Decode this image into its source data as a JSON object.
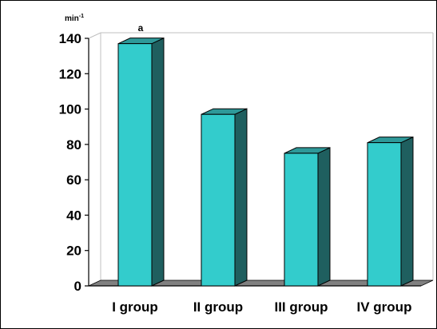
{
  "chart_data": {
    "type": "bar",
    "categories": [
      "I group",
      "II group",
      "III group",
      "IV group"
    ],
    "values": [
      137,
      97,
      75,
      81
    ],
    "ylim": [
      0,
      140
    ],
    "yticks": [
      0,
      20,
      40,
      60,
      80,
      100,
      120,
      140
    ],
    "unit_label": "min",
    "unit_superscript": "-1",
    "top_annotation": "a",
    "grid": false,
    "legend": "none",
    "colors": {
      "bar_front": "#33CCCC",
      "bar_side": "#1F5F5F",
      "bar_top": "#2E9999",
      "floor": "#808080",
      "wall": "#C0C0C0"
    }
  }
}
